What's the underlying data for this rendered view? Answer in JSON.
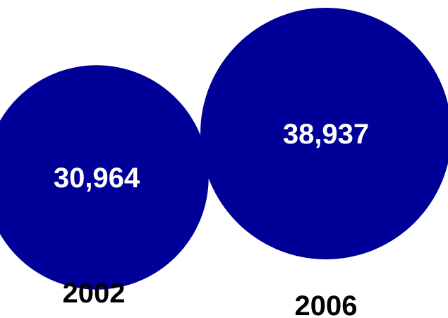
{
  "chart_data": {
    "type": "bubble",
    "categories": [
      "2002",
      "2006"
    ],
    "values": [
      30964,
      38937
    ],
    "value_labels": [
      "30,964",
      "38,937"
    ],
    "title": "",
    "xlabel": "",
    "ylabel": "",
    "grid": false,
    "legend": "none",
    "colors": {
      "bubble": "#000099",
      "value_text": "#ffffff",
      "year_text": "#000000",
      "background": "#ffffff"
    }
  }
}
